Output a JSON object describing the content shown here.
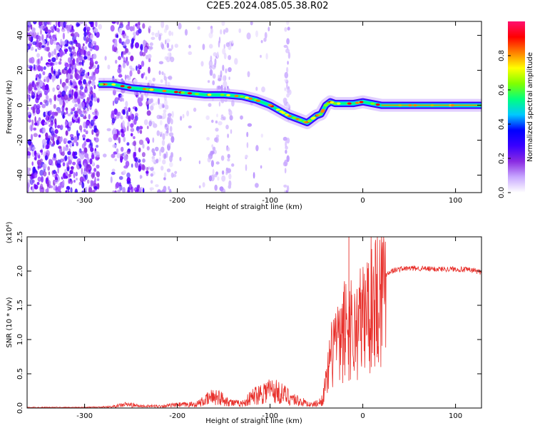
{
  "title": "C2E5.2024.085.05.38.R02",
  "colors": {
    "snr_line": "#e8302b",
    "cmap_low": "#ffffff",
    "cmap_stops": [
      "#ffffff",
      "#c8a8ff",
      "#8a2be2",
      "#3a00ff",
      "#0000ff",
      "#00c8ff",
      "#00ff80",
      "#80ff00",
      "#ffff00",
      "#ff8000",
      "#ff0000",
      "#ff1070"
    ]
  },
  "chart_data": [
    {
      "type": "heatmap",
      "xlabel": "Height of straight line (km)",
      "ylabel": "Frequency (Hz)",
      "xlim": [
        -362,
        128
      ],
      "ylim": [
        -50,
        48
      ],
      "x_ticks": [
        -300,
        -200,
        -100,
        0,
        100
      ],
      "y_ticks": [
        -40,
        -20,
        0,
        20,
        40
      ],
      "colorbar": {
        "label": "Normalized spectral amplitude",
        "range": [
          0,
          1
        ],
        "ticks": [
          "0.0",
          "0.2",
          "0.4",
          "0.6",
          "0.8"
        ]
      },
      "signal_track": {
        "x": [
          -285,
          -270,
          -250,
          -230,
          -210,
          -190,
          -170,
          -150,
          -130,
          -115,
          -100,
          -90,
          -80,
          -70,
          -60,
          -55,
          -50,
          -45,
          -40,
          -35,
          -30,
          -20,
          -10,
          0,
          20,
          60,
          128
        ],
        "freq": [
          12,
          12,
          10,
          9,
          8,
          7,
          6,
          6,
          5,
          3,
          0,
          -3,
          -6,
          -8,
          -10,
          -8,
          -6,
          -5,
          0,
          2,
          1,
          1,
          1,
          2,
          0,
          0,
          0
        ]
      }
    },
    {
      "type": "line",
      "xlabel": "Height of straight line (km)",
      "ylabel": "SNR (10 * v/v)",
      "y_multiplier": "(x10⁴)",
      "xlim": [
        -362,
        128
      ],
      "ylim": [
        0,
        2.5
      ],
      "x_ticks": [
        -300,
        -200,
        -100,
        0,
        100
      ],
      "y_ticks": [
        "0.0",
        "0.5",
        "1.0",
        "1.5",
        "2.0",
        "2.5"
      ],
      "x": [
        -362,
        -300,
        -270,
        -255,
        -240,
        -220,
        -200,
        -180,
        -170,
        -160,
        -150,
        -140,
        -130,
        -115,
        -100,
        -85,
        -70,
        -55,
        -45,
        -40,
        -35,
        -30,
        -25,
        -20,
        -15,
        -10,
        -5,
        0,
        5,
        10,
        15,
        20,
        25,
        30,
        40,
        50,
        60,
        70,
        80,
        90,
        100,
        110,
        120,
        128
      ],
      "y": [
        0.01,
        0.01,
        0.02,
        0.06,
        0.03,
        0.03,
        0.05,
        0.06,
        0.12,
        0.2,
        0.14,
        0.08,
        0.07,
        0.22,
        0.3,
        0.22,
        0.12,
        0.05,
        0.1,
        0.35,
        0.7,
        1.1,
        0.9,
        1.2,
        1.4,
        1.1,
        1.3,
        1.35,
        1.5,
        1.7,
        1.75,
        1.85,
        1.95,
        2.0,
        2.03,
        2.04,
        2.04,
        2.03,
        2.03,
        2.03,
        2.03,
        2.02,
        2.01,
        1.98
      ],
      "peak": {
        "x": -15,
        "y": 2.5
      }
    }
  ]
}
